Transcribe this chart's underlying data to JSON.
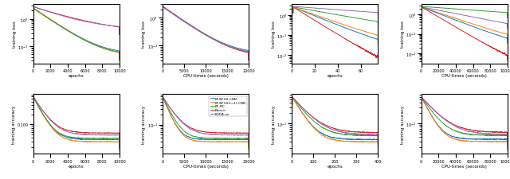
{
  "colors": {
    "kf_bfgs_cnn": "#1f77b4",
    "kf_bfgs_r1_cnn": "#ff7f0e",
    "kf_mc": "#2ca02c",
    "batsch": "#d62728",
    "bgda_nn": "#9467bd"
  },
  "legend_labels": [
    "KF-BFGS-CNN",
    "KF-BFGS(r=1)-CNN",
    "KF-MC",
    "Batsch",
    "BGDA-nn"
  ],
  "xlabels": [
    "epochs",
    "CPU-times (seconds)",
    "epochs",
    "CPU-times (seconds)",
    "epochs",
    "CPU-times (seconds)",
    "epochs",
    "CPU-times (seconds)"
  ],
  "ylabels": [
    "training loss",
    "training loss",
    "training loss",
    "training loss",
    "training accuracy",
    "training accuracy",
    "training accuracy",
    "training accuracy"
  ],
  "figsize": [
    6.4,
    2.26
  ],
  "dpi": 100
}
